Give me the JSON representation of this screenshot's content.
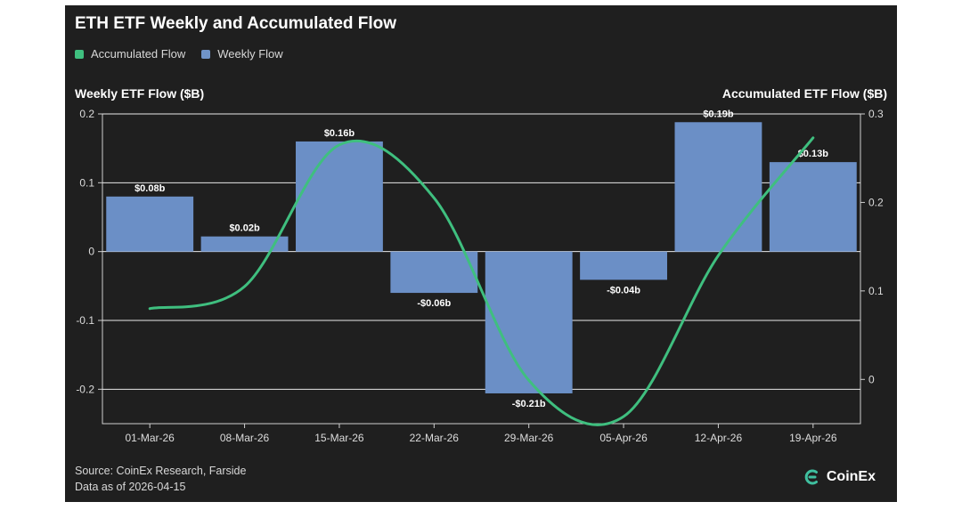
{
  "title": "ETH ETF Weekly and Accumulated Flow",
  "legend": [
    {
      "label": "Accumulated Flow",
      "color": "#3fbf7f"
    },
    {
      "label": "Weekly Flow",
      "color": "#7094c8"
    }
  ],
  "footer": {
    "source": "Source: CoinEx Research, Farside",
    "date": "Data as of 2026-04-15"
  },
  "brand": {
    "name": "CoinEx",
    "icon": "coinex-logo-icon"
  },
  "colors": {
    "bar": "#6b8fc6",
    "line": "#3fbf7f",
    "grid": "#e8e8e8",
    "background": "#1f1f1f"
  },
  "chart_data": {
    "type": "bar",
    "title": "ETH ETF Weekly and Accumulated Flow",
    "categories": [
      "01-Mar-26",
      "08-Mar-26",
      "15-Mar-26",
      "22-Mar-26",
      "29-Mar-26",
      "05-Apr-26",
      "12-Apr-26",
      "19-Apr-26"
    ],
    "ylabel": "Weekly ETF Flow ($B)",
    "y2label": "Accumulated ETF Flow ($B)",
    "ylim": [
      -0.25,
      0.2
    ],
    "y2lim": [
      -0.05,
      0.3
    ],
    "yticks": [
      -0.2,
      -0.1,
      0,
      0.1,
      0.2
    ],
    "yticklabels": [
      "-0.2",
      "-0.1",
      "0",
      "0.1",
      "0.2"
    ],
    "y2ticks": [
      0,
      0.1,
      0.2,
      0.3
    ],
    "y2ticklabels": [
      "0",
      "0.1",
      "0.2",
      "0.3"
    ],
    "grid": true,
    "legend_position": "top-left",
    "series": [
      {
        "name": "Weekly Flow",
        "type": "bar",
        "axis": "left",
        "values": [
          0.08,
          0.022,
          0.16,
          -0.06,
          -0.206,
          -0.041,
          0.188,
          0.13
        ],
        "labels": [
          "$0.08b",
          "$0.02b",
          "$0.16b",
          "-$0.06b",
          "-$0.21b",
          "-$0.04b",
          "$0.19b",
          "$0.13b"
        ]
      },
      {
        "name": "Accumulated Flow",
        "type": "line",
        "axis": "right",
        "values": [
          0.08,
          0.105,
          0.265,
          0.205,
          -0.001,
          -0.042,
          0.14,
          0.273
        ]
      }
    ]
  }
}
